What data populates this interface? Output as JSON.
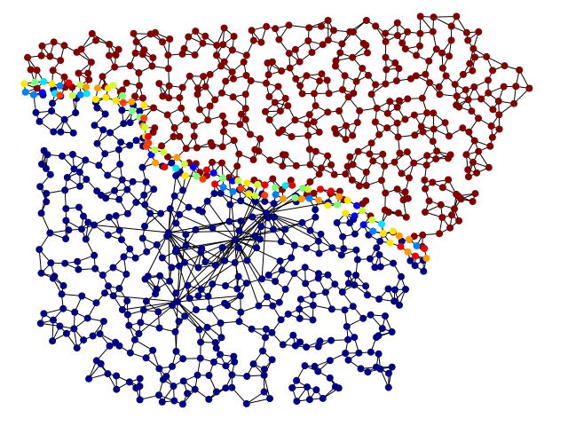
{
  "diagram": {
    "kind": "planar-mesh-graph",
    "background": "#ffffff",
    "edge_color": "#000000",
    "node_outline": "none",
    "colormap": "jet",
    "region_colors": {
      "upper_region": "#800000",
      "lower_region": "#000080"
    },
    "boundary_palette": [
      "#0000ff",
      "#0080ff",
      "#00e5ff",
      "#7dff7a",
      "#c8ff37",
      "#ffe600",
      "#ff9a00",
      "#ff3b00",
      "#e60000"
    ],
    "labels_visible": false
  }
}
